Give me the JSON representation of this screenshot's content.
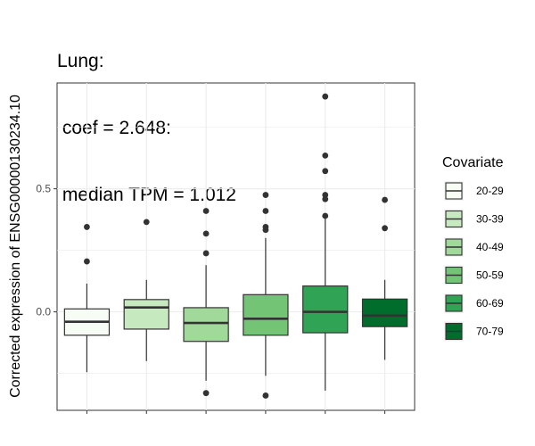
{
  "chart_data": {
    "type": "boxplot",
    "title_lines": [
      "Lung:",
      " coef = 2.648:",
      " median TPM = 1.012"
    ],
    "ylabel": "Corrected expression of ENSG00000130234.10",
    "xlabel": "",
    "ylim": [
      -0.4,
      0.93
    ],
    "y_ticks": [
      0.0,
      0.5
    ],
    "y_tick_labels": [
      "0.0",
      "0.5"
    ],
    "grid": true,
    "legend": {
      "title": "Covariate",
      "position": "right"
    },
    "series": [
      {
        "name": "20-29",
        "color": "#f7fcf5",
        "min": -0.245,
        "q1": -0.095,
        "median": -0.04,
        "q3": 0.012,
        "max": 0.115,
        "outliers": [
          0.345,
          0.205
        ]
      },
      {
        "name": "30-39",
        "color": "#c7e9c0",
        "min": -0.2,
        "q1": -0.07,
        "median": 0.018,
        "q3": 0.05,
        "max": 0.13,
        "outliers": [
          0.365
        ]
      },
      {
        "name": "40-49",
        "color": "#a1d99b",
        "min": -0.28,
        "q1": -0.12,
        "median": -0.045,
        "q3": 0.017,
        "max": 0.19,
        "outliers": [
          0.41,
          0.318,
          0.238,
          -0.33
        ]
      },
      {
        "name": "50-59",
        "color": "#74c476",
        "min": -0.26,
        "q1": -0.095,
        "median": -0.028,
        "q3": 0.07,
        "max": 0.3,
        "outliers": [
          0.475,
          0.41,
          0.345,
          0.333,
          -0.34
        ]
      },
      {
        "name": "60-69",
        "color": "#31a354",
        "min": -0.32,
        "q1": -0.085,
        "median": 0.0,
        "q3": 0.105,
        "max": 0.38,
        "outliers": [
          0.875,
          0.635,
          0.572,
          0.475,
          0.458,
          0.39
        ]
      },
      {
        "name": "70-79",
        "color": "#006d2c",
        "min": -0.195,
        "q1": -0.06,
        "median": -0.015,
        "q3": 0.052,
        "max": 0.13,
        "outliers": [
          0.455,
          0.34
        ]
      }
    ]
  }
}
